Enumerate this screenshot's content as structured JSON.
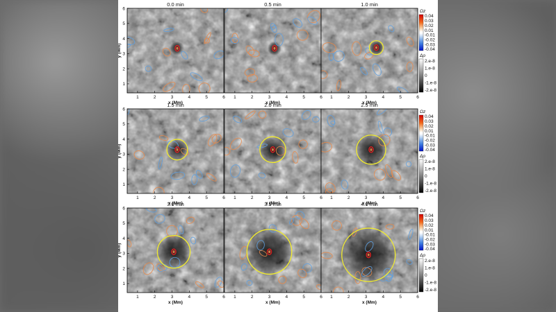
{
  "figure": {
    "colors": {
      "positive_contour": "#e8894a",
      "negative_contour": "#5fa0df",
      "wave_circle": "#f2ec2c",
      "highlight_contour": "#cc2222"
    }
  },
  "chart_data": {
    "type": "heatmap",
    "xlabel": "x (Mm)",
    "ylabel": "y (Mm)",
    "xlim": [
      0.4,
      6
    ],
    "ylim": [
      0.4,
      6
    ],
    "xticks": [
      1,
      2,
      3,
      4,
      5,
      6
    ],
    "yticks": [
      1,
      2,
      3,
      4,
      5,
      6
    ],
    "panels": [
      {
        "title": "0.0 min",
        "circle_center": [
          3.3,
          3.35
        ],
        "circle_radius": 0
      },
      {
        "title": "0.5 min",
        "circle_center": [
          3.3,
          3.35
        ],
        "circle_radius": 0
      },
      {
        "title": "1.0 min",
        "circle_center": [
          3.6,
          3.4
        ],
        "circle_radius": 0.4
      },
      {
        "title": "1.5 min",
        "circle_center": [
          3.3,
          3.3
        ],
        "circle_radius": 0.6
      },
      {
        "title": "2.0 min",
        "circle_center": [
          3.2,
          3.3
        ],
        "circle_radius": 0.75
      },
      {
        "title": "2.5 min",
        "circle_center": [
          3.3,
          3.3
        ],
        "circle_radius": 0.85
      },
      {
        "title": "3.0 min",
        "circle_center": [
          3.1,
          3.1
        ],
        "circle_radius": 0.95
      },
      {
        "title": "3.5 min",
        "circle_center": [
          3.0,
          3.1
        ],
        "circle_radius": 1.3
      },
      {
        "title": "4.0 min",
        "circle_center": [
          3.15,
          2.9
        ],
        "circle_radius": 1.55
      }
    ],
    "colorbars": {
      "omega": {
        "label": "Ωz",
        "ticks": [
          "0.04",
          "0.03",
          "0.02",
          "0.01",
          "-0.01",
          "-0.02",
          "-0.03",
          "-0.04"
        ]
      },
      "rho": {
        "label": "Δρ",
        "ticks": [
          "2.e-8",
          "1.e-8",
          "0",
          "-1.e-8",
          "-2.e-8"
        ]
      }
    }
  }
}
